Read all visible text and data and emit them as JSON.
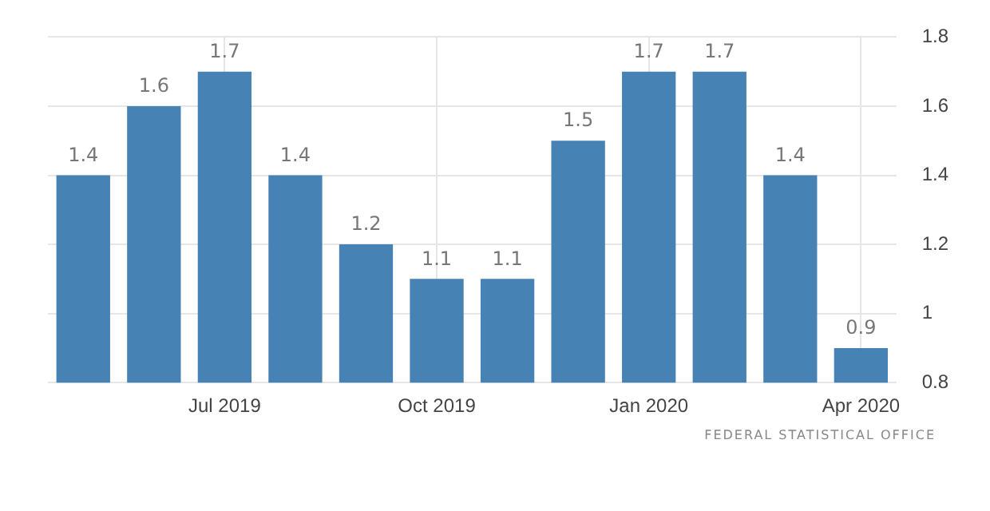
{
  "chart_data": {
    "type": "bar",
    "categories": [
      null,
      null,
      "Jul 2019",
      null,
      null,
      "Oct 2019",
      null,
      null,
      "Jan 2020",
      null,
      null,
      "Apr 2020"
    ],
    "values": [
      1.4,
      1.6,
      1.7,
      1.4,
      1.2,
      1.1,
      1.1,
      1.5,
      1.7,
      1.7,
      1.4,
      0.9
    ],
    "color": "#4682b4",
    "ylim": [
      0.8,
      1.8
    ],
    "yticks": [
      0.8,
      1,
      1.2,
      1.4,
      1.6,
      1.8
    ],
    "grid": true,
    "data_labels": true,
    "legend": false,
    "annotations": [
      "FEDERAL STATISTICAL OFFICE"
    ]
  }
}
